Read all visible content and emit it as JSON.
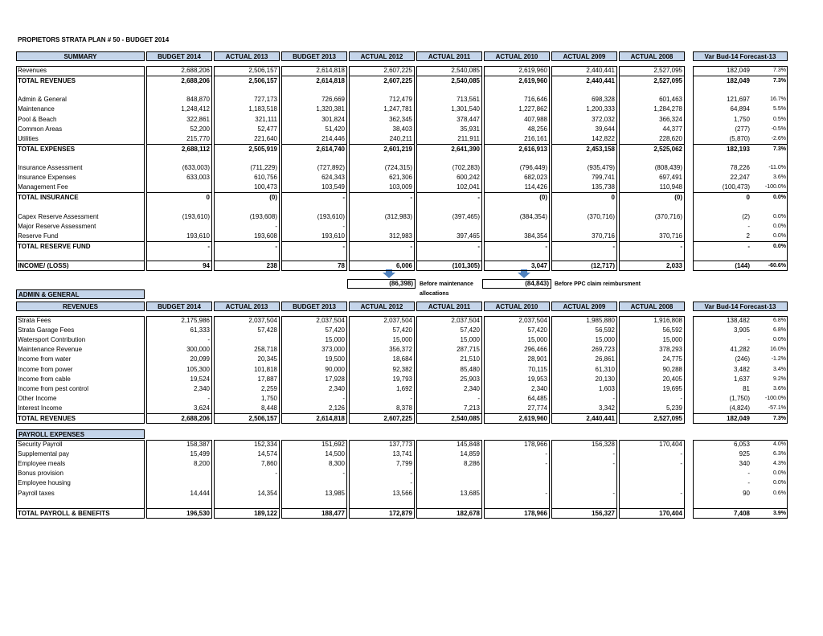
{
  "title": "PROPIETORS STRATA PLAN # 50 - BUDGET 2014",
  "summary": {
    "label": "SUMMARY",
    "columns": [
      "BUDGET 2014",
      "ACTUAL 2013",
      "BUDGET 2013",
      "ACTUAL 2012",
      "ACTUAL 2011",
      "ACTUAL 2010",
      "ACTUAL 2009",
      "ACTUAL 2008"
    ],
    "variance_header": "Var Bud-14 Forecast-13",
    "groups": [
      [
        {
          "label": "Revenues",
          "cells": [
            "2,688,206",
            "2,506,157",
            "2,614,818",
            "2,607,225",
            "2,540,085",
            "2,619,960",
            "2,440,441",
            "2,527,095"
          ],
          "variance": "182,049",
          "pct": "7.3%"
        },
        {
          "label": "TOTAL REVENUES",
          "bold": true,
          "cells": [
            "2,688,206",
            "2,506,157",
            "2,614,818",
            "2,607,225",
            "2,540,085",
            "2,619,960",
            "2,440,441",
            "2,527,095"
          ],
          "variance": "182,049",
          "pct": "7.3%"
        }
      ],
      [
        {
          "label": "Admin & General",
          "cells": [
            "848,870",
            "727,173",
            "726,669",
            "712,479",
            "713,561",
            "716,646",
            "698,328",
            "601,463"
          ],
          "variance": "121,697",
          "pct": "16.7%"
        },
        {
          "label": "Maintenance",
          "cells": [
            "1,248,412",
            "1,183,518",
            "1,320,381",
            "1,247,781",
            "1,301,540",
            "1,227,862",
            "1,200,333",
            "1,284,278"
          ],
          "variance": "64,894",
          "pct": "5.5%"
        },
        {
          "label": "Pool & Beach",
          "cells": [
            "322,861",
            "321,111",
            "301,824",
            "362,345",
            "378,447",
            "407,988",
            "372,032",
            "366,324"
          ],
          "variance": "1,750",
          "pct": "0.5%"
        },
        {
          "label": "Common Areas",
          "cells": [
            "52,200",
            "52,477",
            "51,420",
            "38,403",
            "35,931",
            "48,256",
            "39,644",
            "44,377"
          ],
          "variance": "(277)",
          "pct": "-0.5%"
        },
        {
          "label": "Utilities",
          "cells": [
            "215,770",
            "221,640",
            "214,446",
            "240,211",
            "211,911",
            "216,161",
            "142,822",
            "228,620"
          ],
          "variance": "(5,870)",
          "pct": "-2.6%"
        },
        {
          "label": "TOTAL EXPENSES",
          "bold": true,
          "cells": [
            "2,688,112",
            "2,505,919",
            "2,614,740",
            "2,601,219",
            "2,641,390",
            "2,616,913",
            "2,453,158",
            "2,525,062"
          ],
          "variance": "182,193",
          "pct": "7.3%"
        }
      ],
      [
        {
          "label": "Insurance Assessment",
          "cells": [
            "(633,003)",
            "(711,229)",
            "(727,892)",
            "(724,315)",
            "(702,283)",
            "(796,449)",
            "(935,479)",
            "(808,439)"
          ],
          "variance": "78,226",
          "pct": "-11.0%"
        },
        {
          "label": "Insurance Expenses",
          "cells": [
            "633,003",
            "610,756",
            "624,343",
            "621,306",
            "600,242",
            "682,023",
            "799,741",
            "697,491"
          ],
          "variance": "22,247",
          "pct": "3.6%"
        },
        {
          "label": "Management Fee",
          "cells": [
            null,
            "100,473",
            "103,549",
            "103,009",
            "102,041",
            "114,426",
            "135,738",
            "110,948"
          ],
          "variance": "(100,473)",
          "pct": "-100.0%"
        },
        {
          "label": "TOTAL INSURANCE",
          "bold": true,
          "cells": [
            "0",
            "(0)",
            "-",
            "-",
            "-",
            "(0)",
            "0",
            "(0)"
          ],
          "variance": "0",
          "pct": "0.0%"
        }
      ],
      [
        {
          "label": "Capex Reserve Assessment",
          "cells": [
            "(193,610)",
            "(193,608)",
            "(193,610)",
            "(312,983)",
            "(397,465)",
            "(384,354)",
            "(370,716)",
            "(370,716)"
          ],
          "variance": "(2)",
          "pct": "0.0%"
        },
        {
          "label": "Major Reserve Assessment",
          "cells": [
            null,
            "-",
            "-",
            null,
            null,
            null,
            null,
            null
          ],
          "variance": "-",
          "pct": "0.0%"
        },
        {
          "label": "Reserve Fund",
          "cells": [
            "193,610",
            "193,608",
            "193,610",
            "312,983",
            "397,465",
            "384,354",
            "370,716",
            "370,716"
          ],
          "variance": "2",
          "pct": "0.0%"
        },
        {
          "label": "TOTAL RESERVE FUND",
          "bold": true,
          "cells": [
            "-",
            "-",
            "-",
            "-",
            "-",
            "-",
            "-",
            "-"
          ],
          "variance": "-",
          "pct": "0.0%"
        }
      ],
      [
        {
          "label": "INCOME/ (LOSS)",
          "bold": true,
          "cells": [
            "94",
            "238",
            "78",
            "6,006",
            "(101,305)",
            "3,047",
            "(12,717)",
            "2,033"
          ],
          "variance": "(144)",
          "pct": "-60.6%"
        }
      ]
    ]
  },
  "notes": [
    {
      "value": "(86,398)",
      "text": "Before maintenance allocations"
    },
    {
      "value": "(84,843)",
      "text": "Before PPC claim reimbursment"
    }
  ],
  "admin_general": {
    "title": "ADMIN & GENERAL",
    "revenues": {
      "label": "REVENUES",
      "columns": [
        "BUDGET 2014",
        "ACTUAL 2013",
        "BUDGET 2013",
        "ACTUAL 2012",
        "ACTUAL 2011",
        "ACTUAL 2010",
        "ACTUAL 2009",
        "ACTUAL 2008"
      ],
      "variance_header": "Var Bud-14 Forecast-13",
      "groups": [
        [
          {
            "label": "Strata Fees",
            "cells": [
              "2,175,986",
              "2,037,504",
              "2,037,504",
              "2,037,504",
              "2,037,504",
              "2,037,504",
              "1,985,880",
              "1,916,808"
            ],
            "variance": "138,482",
            "pct": "6.8%"
          },
          {
            "label": "Strata Garage Fees",
            "cells": [
              "61,333",
              "57,428",
              "57,420",
              "57,420",
              "57,420",
              "57,420",
              "56,592",
              "56,592"
            ],
            "variance": "3,905",
            "pct": "6.8%"
          },
          {
            "label": "Watersport Contribution",
            "cells": [
              "-",
              null,
              "15,000",
              "15,000",
              "15,000",
              "15,000",
              "15,000",
              "15,000"
            ],
            "variance": "-",
            "pct": "0.0%"
          },
          {
            "label": "Maintenance Revenue",
            "cells": [
              "300,000",
              "258,718",
              "373,000",
              "356,372",
              "287,715",
              "296,466",
              "269,723",
              "378,293"
            ],
            "variance": "41,282",
            "pct": "16.0%"
          },
          {
            "label": "Income from water",
            "cells": [
              "20,099",
              "20,345",
              "19,500",
              "18,684",
              "21,510",
              "28,901",
              "26,861",
              "24,775"
            ],
            "variance": "(246)",
            "pct": "-1.2%"
          },
          {
            "label": "Income from power",
            "cells": [
              "105,300",
              "101,818",
              "90,000",
              "92,382",
              "85,480",
              "70,115",
              "61,310",
              "90,288"
            ],
            "variance": "3,482",
            "pct": "3.4%"
          },
          {
            "label": "Income from cable",
            "cells": [
              "19,524",
              "17,887",
              "17,928",
              "19,793",
              "25,903",
              "19,953",
              "20,130",
              "20,405"
            ],
            "variance": "1,637",
            "pct": "9.2%"
          },
          {
            "label": "Income from pest control",
            "cells": [
              "2,340",
              "2,259",
              "2,340",
              "1,692",
              "2,340",
              "2,340",
              "1,603",
              "19,695"
            ],
            "variance": "81",
            "pct": "3.6%"
          },
          {
            "label": "Other Income",
            "cells": [
              "-",
              "1,750",
              "-",
              "-",
              "-",
              "64,485",
              "-",
              "-"
            ],
            "variance": "(1,750)",
            "pct": "-100.0%"
          },
          {
            "label": "Interest Income",
            "cells": [
              "3,624",
              "8,448",
              "2,126",
              "8,378",
              "7,213",
              "27,774",
              "3,342",
              "5,239"
            ],
            "variance": "(4,824)",
            "pct": "-57.1%"
          },
          {
            "label": "TOTAL REVENUES",
            "bold": true,
            "cells": [
              "2,688,206",
              "2,506,157",
              "2,614,818",
              "2,607,225",
              "2,540,085",
              "2,619,960",
              "2,440,441",
              "2,527,095"
            ],
            "variance": "182,049",
            "pct": "7.3%"
          }
        ]
      ]
    },
    "payroll": {
      "label": "PAYROLL EXPENSES",
      "groups": [
        [
          {
            "label": "Security Payroll",
            "cells": [
              "158,387",
              "152,334",
              "151,692",
              "137,773",
              "145,848",
              "178,966",
              "156,328",
              "170,404"
            ],
            "variance": "6,053",
            "pct": "4.0%"
          },
          {
            "label": "Supplemental pay",
            "cells": [
              "15,499",
              "14,574",
              "14,500",
              "13,741",
              "14,859",
              "-",
              "-",
              "-"
            ],
            "variance": "925",
            "pct": "6.3%"
          },
          {
            "label": "Employee meals",
            "cells": [
              "8,200",
              "7,860",
              "8,300",
              "7,799",
              "8,286",
              "-",
              "-",
              "-"
            ],
            "variance": "340",
            "pct": "4.3%"
          },
          {
            "label": "Bonus provision",
            "cells": [
              null,
              "-",
              "-",
              "-",
              null,
              null,
              null,
              null
            ],
            "variance": "-",
            "pct": "0.0%"
          },
          {
            "label": "Employee housing",
            "cells": [
              null,
              null,
              null,
              "-",
              null,
              null,
              null,
              null
            ],
            "variance": "-",
            "pct": "0.0%"
          },
          {
            "label": "Payroll taxes",
            "cells": [
              "14,444",
              "14,354",
              "13,985",
              "13,566",
              "13,685",
              "-",
              "-",
              "-"
            ],
            "variance": "90",
            "pct": "0.6%"
          }
        ],
        [
          {
            "label": "TOTAL PAYROLL & BENEFITS",
            "bold": true,
            "cells": [
              "196,530",
              "189,122",
              "188,477",
              "172,879",
              "182,678",
              "178,966",
              "156,327",
              "170,404"
            ],
            "variance": "7,408",
            "pct": "3.9%"
          }
        ]
      ]
    }
  }
}
